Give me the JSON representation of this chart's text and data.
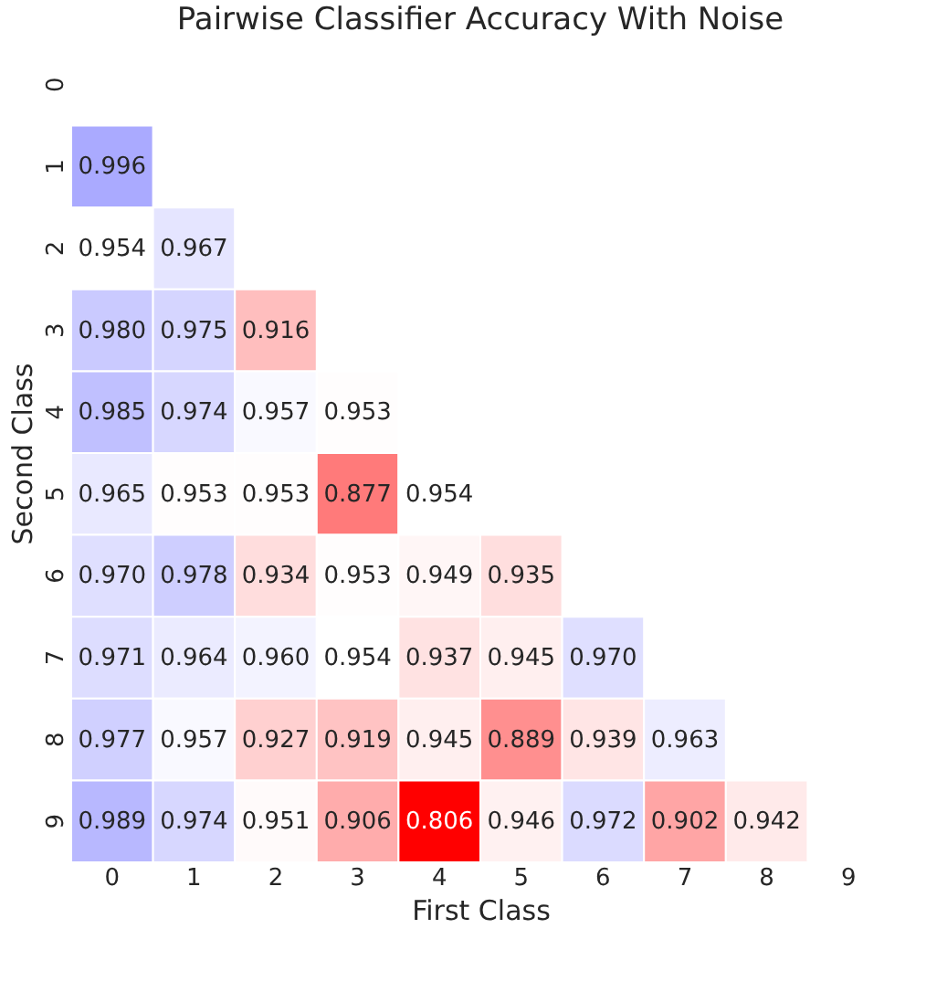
{
  "chart_data": {
    "type": "heatmap",
    "title": "Pairwise Classifier Accuracy With Noise",
    "xlabel": "First Class",
    "ylabel": "Second Class",
    "categories": [
      "0",
      "1",
      "2",
      "3",
      "4",
      "5",
      "6",
      "7",
      "8",
      "9"
    ],
    "y_categories": [
      "0",
      "1",
      "2",
      "3",
      "4",
      "5",
      "6",
      "7",
      "8",
      "9"
    ],
    "cells": [
      [
        null,
        null,
        null,
        null,
        null,
        null,
        null,
        null,
        null,
        null
      ],
      [
        0.996,
        null,
        null,
        null,
        null,
        null,
        null,
        null,
        null,
        null
      ],
      [
        0.954,
        0.967,
        null,
        null,
        null,
        null,
        null,
        null,
        null,
        null
      ],
      [
        0.98,
        0.975,
        0.916,
        null,
        null,
        null,
        null,
        null,
        null,
        null
      ],
      [
        0.985,
        0.974,
        0.957,
        0.953,
        null,
        null,
        null,
        null,
        null,
        null
      ],
      [
        0.965,
        0.953,
        0.953,
        0.877,
        0.954,
        null,
        null,
        null,
        null,
        null
      ],
      [
        0.97,
        0.978,
        0.934,
        0.953,
        0.949,
        0.935,
        null,
        null,
        null,
        null
      ],
      [
        0.971,
        0.964,
        0.96,
        0.954,
        0.937,
        0.945,
        0.97,
        null,
        null,
        null
      ],
      [
        0.977,
        0.957,
        0.927,
        0.919,
        0.945,
        0.889,
        0.939,
        0.963,
        null,
        null
      ],
      [
        0.989,
        0.974,
        0.951,
        0.906,
        0.806,
        0.946,
        0.972,
        0.902,
        0.942,
        null
      ]
    ],
    "cell_labels": [
      [
        null,
        null,
        null,
        null,
        null,
        null,
        null,
        null,
        null,
        null
      ],
      [
        "0.996",
        null,
        null,
        null,
        null,
        null,
        null,
        null,
        null,
        null
      ],
      [
        "0.954",
        "0.967",
        null,
        null,
        null,
        null,
        null,
        null,
        null,
        null
      ],
      [
        "0.980",
        "0.975",
        "0.916",
        null,
        null,
        null,
        null,
        null,
        null,
        null
      ],
      [
        "0.985",
        "0.974",
        "0.957",
        "0.953",
        null,
        null,
        null,
        null,
        null,
        null
      ],
      [
        "0.965",
        "0.953",
        "0.953",
        "0.877",
        "0.954",
        null,
        null,
        null,
        null,
        null
      ],
      [
        "0.970",
        "0.978",
        "0.934",
        "0.953",
        "0.949",
        "0.935",
        null,
        null,
        null,
        null
      ],
      [
        "0.971",
        "0.964",
        "0.960",
        "0.954",
        "0.937",
        "0.945",
        "0.970",
        null,
        null,
        null
      ],
      [
        "0.977",
        "0.957",
        "0.927",
        "0.919",
        "0.945",
        "0.889",
        "0.939",
        "0.963",
        null,
        null
      ],
      [
        "0.989",
        "0.974",
        "0.951",
        "0.906",
        "0.806",
        "0.946",
        "0.972",
        "0.902",
        "0.942",
        null
      ]
    ],
    "data_labels": true
  }
}
